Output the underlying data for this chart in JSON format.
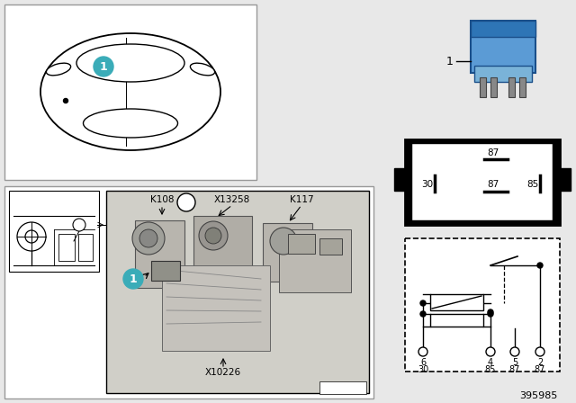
{
  "bg_color": "#e8e8e8",
  "white": "#ffffff",
  "black": "#000000",
  "teal": "#3aacb8",
  "part_number": "395985",
  "pin_labels_top": [
    "6",
    "4",
    "5",
    "2"
  ],
  "pin_labels_bot": [
    "30",
    "85",
    "87",
    "87"
  ],
  "relay_blue": "#5b9bd5",
  "relay_blue_dark": "#2e75b6",
  "relay_blue_light": "#9dc3e6"
}
